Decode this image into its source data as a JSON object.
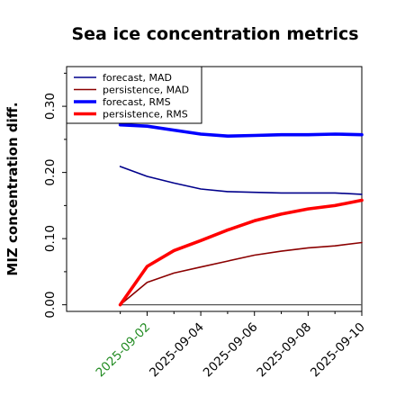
{
  "chart_data": {
    "type": "line",
    "title": "Sea ice concentration metrics",
    "xlabel": "",
    "ylabel": "MIZ concentration diff.",
    "x": [
      "2025-09-01",
      "2025-09-02",
      "2025-09-03",
      "2025-09-04",
      "2025-09-05",
      "2025-09-06",
      "2025-09-07",
      "2025-09-08",
      "2025-09-09",
      "2025-09-10"
    ],
    "xtick_labels": [
      "2025-09-02",
      "2025-09-04",
      "2025-09-06",
      "2025-09-08",
      "2025-09-10"
    ],
    "xtick_colors": [
      "#228b22",
      "#000000",
      "#000000",
      "#000000",
      "#000000"
    ],
    "yticks": [
      "0.00",
      "0.10",
      "0.20",
      "0.30"
    ],
    "xlim": [
      "2025-08-30",
      "2025-09-10"
    ],
    "ylim": [
      -0.01,
      0.36
    ],
    "grid": false,
    "legend_position": "upper-left",
    "baseline": 0,
    "series": [
      {
        "name": "forecast,  MAD",
        "color": "#00008b",
        "width": "thin",
        "values": [
          0.209,
          0.194,
          0.184,
          0.175,
          0.171,
          0.17,
          0.169,
          0.169,
          0.169,
          0.167
        ]
      },
      {
        "name": "persistence, MAD",
        "color": "#8b0000",
        "width": "thin",
        "values": [
          0.0,
          0.034,
          0.048,
          0.057,
          0.066,
          0.075,
          0.081,
          0.086,
          0.089,
          0.094
        ]
      },
      {
        "name": "forecast,  RMS",
        "color": "#0000ff",
        "width": "thick",
        "values": [
          0.272,
          0.27,
          0.264,
          0.258,
          0.255,
          0.256,
          0.257,
          0.257,
          0.258,
          0.257
        ]
      },
      {
        "name": "persistence, RMS",
        "color": "#ff0000",
        "width": "thick",
        "values": [
          0.0,
          0.058,
          0.082,
          0.097,
          0.113,
          0.127,
          0.137,
          0.145,
          0.15,
          0.158
        ]
      }
    ]
  }
}
